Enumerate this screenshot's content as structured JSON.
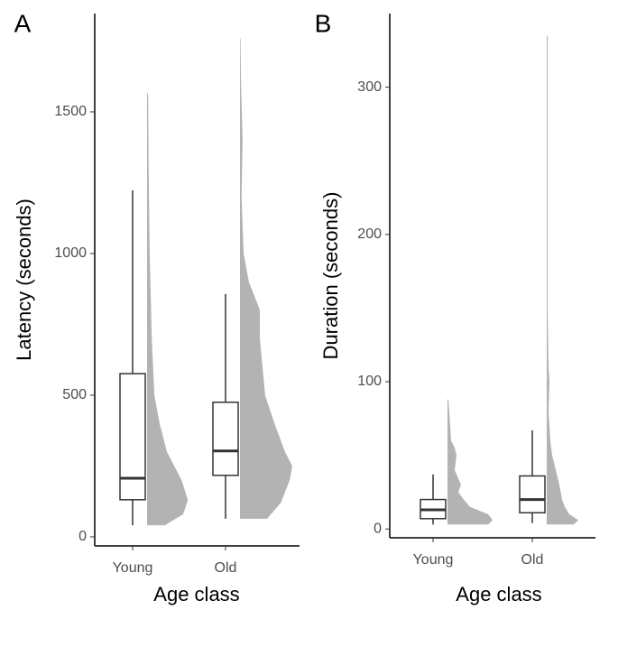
{
  "chart_data": [
    {
      "type": "box",
      "panel": "A",
      "ylabel": "Latency (seconds)",
      "xlabel": "Age class",
      "categories": [
        "Young",
        "Old"
      ],
      "boxes": [
        {
          "min": 41,
          "q1": 131,
          "median": 207,
          "q3": 576,
          "max": 1223
        },
        {
          "min": 64,
          "q1": 217,
          "median": 303,
          "q3": 475,
          "max": 857
        }
      ],
      "violins": [
        {
          "y": [
            41,
            80,
            130,
            200,
            300,
            400,
            500,
            700,
            1000,
            1300,
            1565
          ],
          "density": [
            0.34,
            0.69,
            0.78,
            0.66,
            0.38,
            0.24,
            0.14,
            0.09,
            0.05,
            0.03,
            0.02
          ]
        },
        {
          "y": [
            64,
            120,
            200,
            250,
            300,
            400,
            500,
            600,
            700,
            800,
            900,
            1000,
            1200,
            1400,
            1600,
            1760
          ],
          "density": [
            0.52,
            0.78,
            0.95,
            1,
            0.86,
            0.66,
            0.48,
            0.43,
            0.38,
            0.38,
            0.17,
            0.07,
            0.03,
            0.05,
            0.02,
            0.01
          ]
        }
      ],
      "color": "#b3b3b3",
      "ylim": [
        -32,
        1847
      ],
      "yticks": [
        0,
        500,
        1000,
        1500
      ]
    },
    {
      "type": "box",
      "panel": "B",
      "ylabel": "Duration (seconds)",
      "xlabel": "Age class",
      "categories": [
        "Young",
        "Old"
      ],
      "boxes": [
        {
          "min": 3,
          "q1": 7,
          "median": 13,
          "q3": 20,
          "max": 37
        },
        {
          "min": 4,
          "q1": 11,
          "median": 20,
          "q3": 36,
          "max": 67
        }
      ],
      "violins": [
        {
          "y": [
            3,
            6,
            10,
            15,
            20,
            25,
            30,
            40,
            50,
            55,
            60,
            70,
            88
          ],
          "density": [
            0.9,
            1,
            0.9,
            0.5,
            0.36,
            0.24,
            0.3,
            0.16,
            0.2,
            0.16,
            0.08,
            0.06,
            0.02
          ]
        },
        {
          "y": [
            3,
            6,
            10,
            15,
            20,
            30,
            40,
            50,
            60,
            80,
            100,
            110,
            150,
            200,
            230,
            300,
            335
          ],
          "density": [
            0.6,
            0.7,
            0.5,
            0.4,
            0.34,
            0.28,
            0.2,
            0.12,
            0.08,
            0.04,
            0.06,
            0.04,
            0.02,
            0.02,
            0.02,
            0.02,
            0.02
          ]
        }
      ],
      "color": "#b3b3b3",
      "ylim": [
        -6,
        350
      ],
      "yticks": [
        0,
        100,
        200,
        300
      ]
    }
  ]
}
